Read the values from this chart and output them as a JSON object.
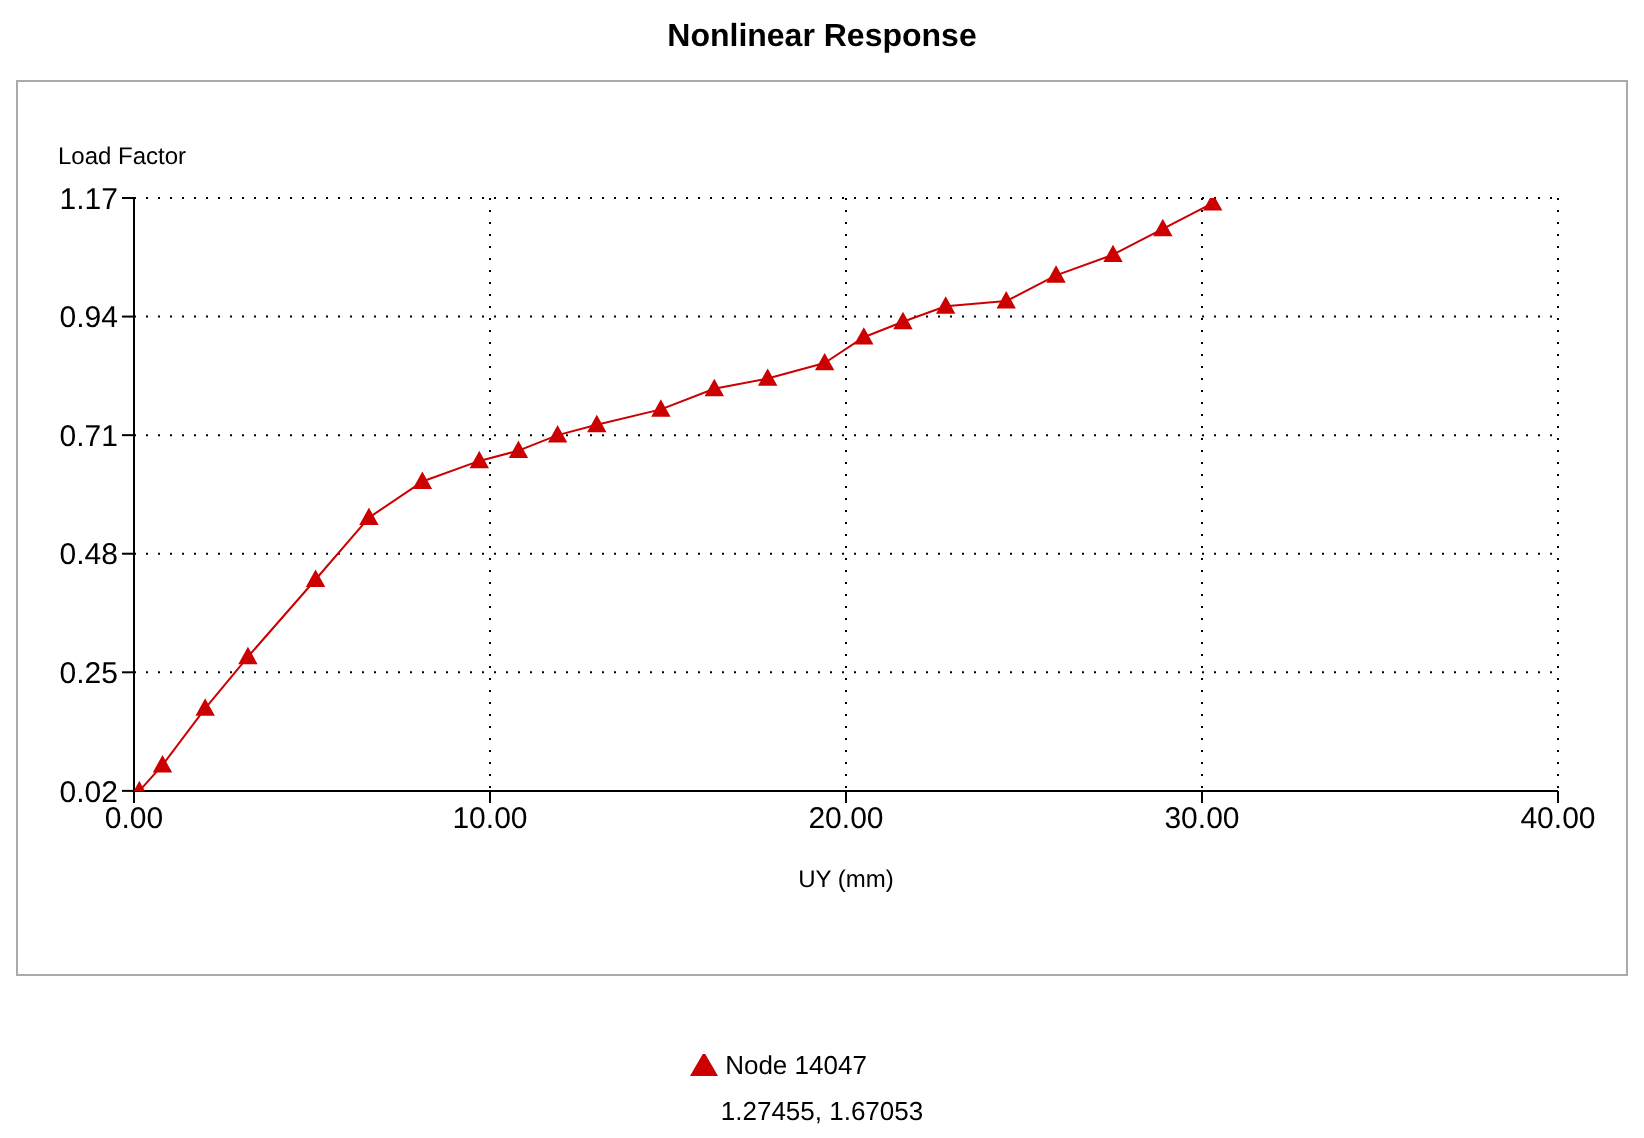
{
  "chart_data": {
    "type": "line",
    "title": "Nonlinear Response",
    "xlabel": "UY (mm)",
    "ylabel": "Load Factor",
    "x": [
      0.15,
      0.8,
      2.0,
      3.2,
      5.1,
      6.6,
      8.1,
      9.7,
      10.8,
      11.9,
      13.0,
      14.8,
      16.3,
      17.8,
      19.4,
      20.5,
      21.6,
      22.8,
      24.5,
      25.9,
      27.5,
      28.9,
      30.3
    ],
    "series": [
      {
        "name": "Node 14047",
        "color": "#cc0000",
        "values": [
          0.02,
          0.07,
          0.18,
          0.28,
          0.43,
          0.55,
          0.62,
          0.66,
          0.68,
          0.71,
          0.73,
          0.76,
          0.8,
          0.82,
          0.85,
          0.9,
          0.93,
          0.96,
          0.97,
          1.02,
          1.06,
          1.11,
          1.16
        ]
      }
    ],
    "xlim": [
      0,
      40
    ],
    "xticks": [
      {
        "value": 0,
        "label": "0.00"
      },
      {
        "value": 10,
        "label": "10.00"
      },
      {
        "value": 20,
        "label": "20.00"
      },
      {
        "value": 30,
        "label": "30.00"
      },
      {
        "value": 40,
        "label": "40.00"
      }
    ],
    "ylim": [
      0.02,
      1.17
    ],
    "yticks": [
      0.02,
      0.25,
      0.48,
      0.71,
      0.94,
      1.17
    ],
    "grid": true,
    "legend": "bottom",
    "marker": "triangle",
    "line_style": "solid",
    "annotations": [
      "1.27455, 1.67053"
    ]
  }
}
